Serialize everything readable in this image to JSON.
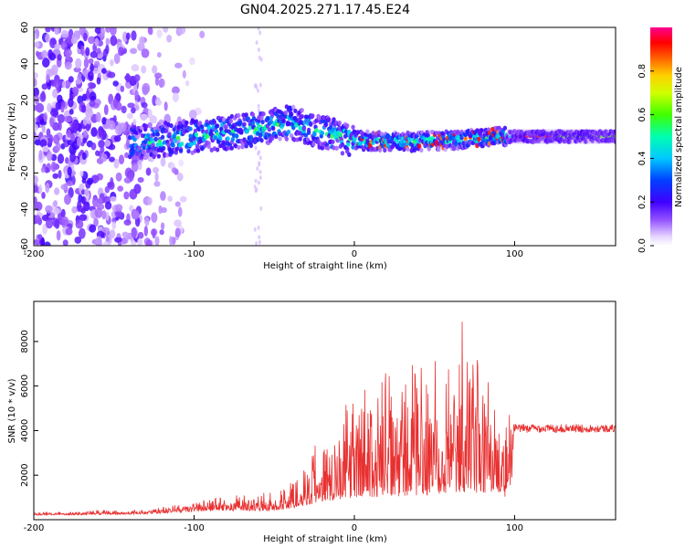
{
  "title": "GN04.2025.271.17.45.E24",
  "chart_data": [
    {
      "type": "heatmap",
      "xlabel": "Height of straight line (km)",
      "ylabel": "Frequency (Hz)",
      "xlim": [
        -200,
        163
      ],
      "ylim": [
        -60,
        60
      ],
      "x_ticks": [
        "-200",
        "-100",
        "0",
        "100"
      ],
      "y_ticks": [
        "-60",
        "-40",
        "-20",
        "0",
        "20",
        "40",
        "60"
      ],
      "colorbar": {
        "label": "Normalized spectral amplitude",
        "range": [
          0,
          1
        ],
        "ticks": [
          "0.0",
          "0.2",
          "0.4",
          "0.6",
          "0.8"
        ]
      },
      "features": {
        "noise_region_x": [
          -200,
          -110
        ],
        "band_center_y": [
          {
            "x": -135,
            "y": -3
          },
          {
            "x": -100,
            "y": 0
          },
          {
            "x": -70,
            "y": 3
          },
          {
            "x": -55,
            "y": 5
          },
          {
            "x": -40,
            "y": 8
          },
          {
            "x": -20,
            "y": 2
          },
          {
            "x": 0,
            "y": -2
          },
          {
            "x": 30,
            "y": -3
          },
          {
            "x": 60,
            "y": -2
          },
          {
            "x": 90,
            "y": 0
          },
          {
            "x": 163,
            "y": 0
          }
        ],
        "strong_line_x": [
          90,
          163
        ]
      }
    },
    {
      "type": "line",
      "xlabel": "Height of straight line (km)",
      "ylabel": "SNR (10 * v/v)",
      "xlim": [
        -200,
        163
      ],
      "ylim": [
        0,
        9800
      ],
      "x_ticks": [
        "-200",
        "-100",
        "0",
        "100"
      ],
      "y_ticks": [
        "2000",
        "4000",
        "6000",
        "8000"
      ],
      "series": [
        {
          "color": "#e83030",
          "envelope": [
            {
              "x": -200,
              "base": 200,
              "amp": 150
            },
            {
              "x": -130,
              "base": 250,
              "amp": 250
            },
            {
              "x": -90,
              "base": 400,
              "amp": 650
            },
            {
              "x": -50,
              "base": 400,
              "amp": 900
            },
            {
              "x": -40,
              "base": 500,
              "amp": 1500
            },
            {
              "x": -20,
              "base": 800,
              "amp": 3500
            },
            {
              "x": 0,
              "base": 1000,
              "amp": 5200
            },
            {
              "x": 30,
              "base": 1000,
              "amp": 6500
            },
            {
              "x": 60,
              "base": 1200,
              "amp": 8400
            },
            {
              "x": 80,
              "base": 1200,
              "amp": 7600
            },
            {
              "x": 95,
              "base": 1000,
              "amp": 7000
            },
            {
              "x": 100,
              "base": 4100,
              "amp": 400
            },
            {
              "x": 163,
              "base": 4100,
              "amp": 350
            }
          ]
        }
      ]
    }
  ]
}
